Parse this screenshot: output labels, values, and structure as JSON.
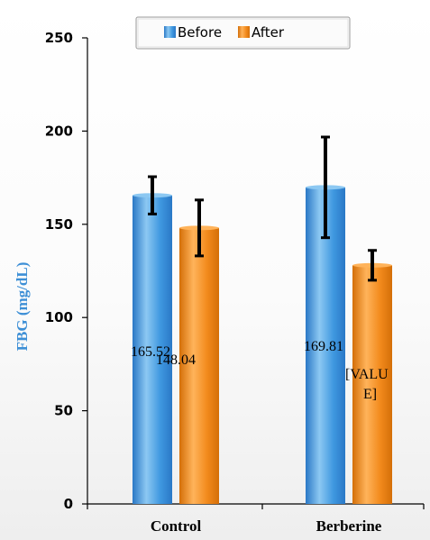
{
  "chart_data": {
    "type": "bar",
    "ylabel": "FBG (mg/dL)",
    "xlabel": "",
    "ylim": [
      0,
      250
    ],
    "yticks": [
      0,
      50,
      100,
      150,
      200,
      250
    ],
    "categories": [
      "Control",
      "Berberine"
    ],
    "series": [
      {
        "name": "Before",
        "color": "#4a9fe3",
        "values": [
          165.52,
          169.81
        ],
        "error": [
          10,
          27
        ],
        "labels": [
          "165.52",
          "169.81"
        ]
      },
      {
        "name": "After",
        "color": "#f28a1c",
        "values": [
          148.04,
          128
        ],
        "error": [
          15,
          8
        ],
        "labels": [
          "148.04",
          "[VALU\nE]"
        ]
      }
    ],
    "legend": "top",
    "grid": false
  }
}
